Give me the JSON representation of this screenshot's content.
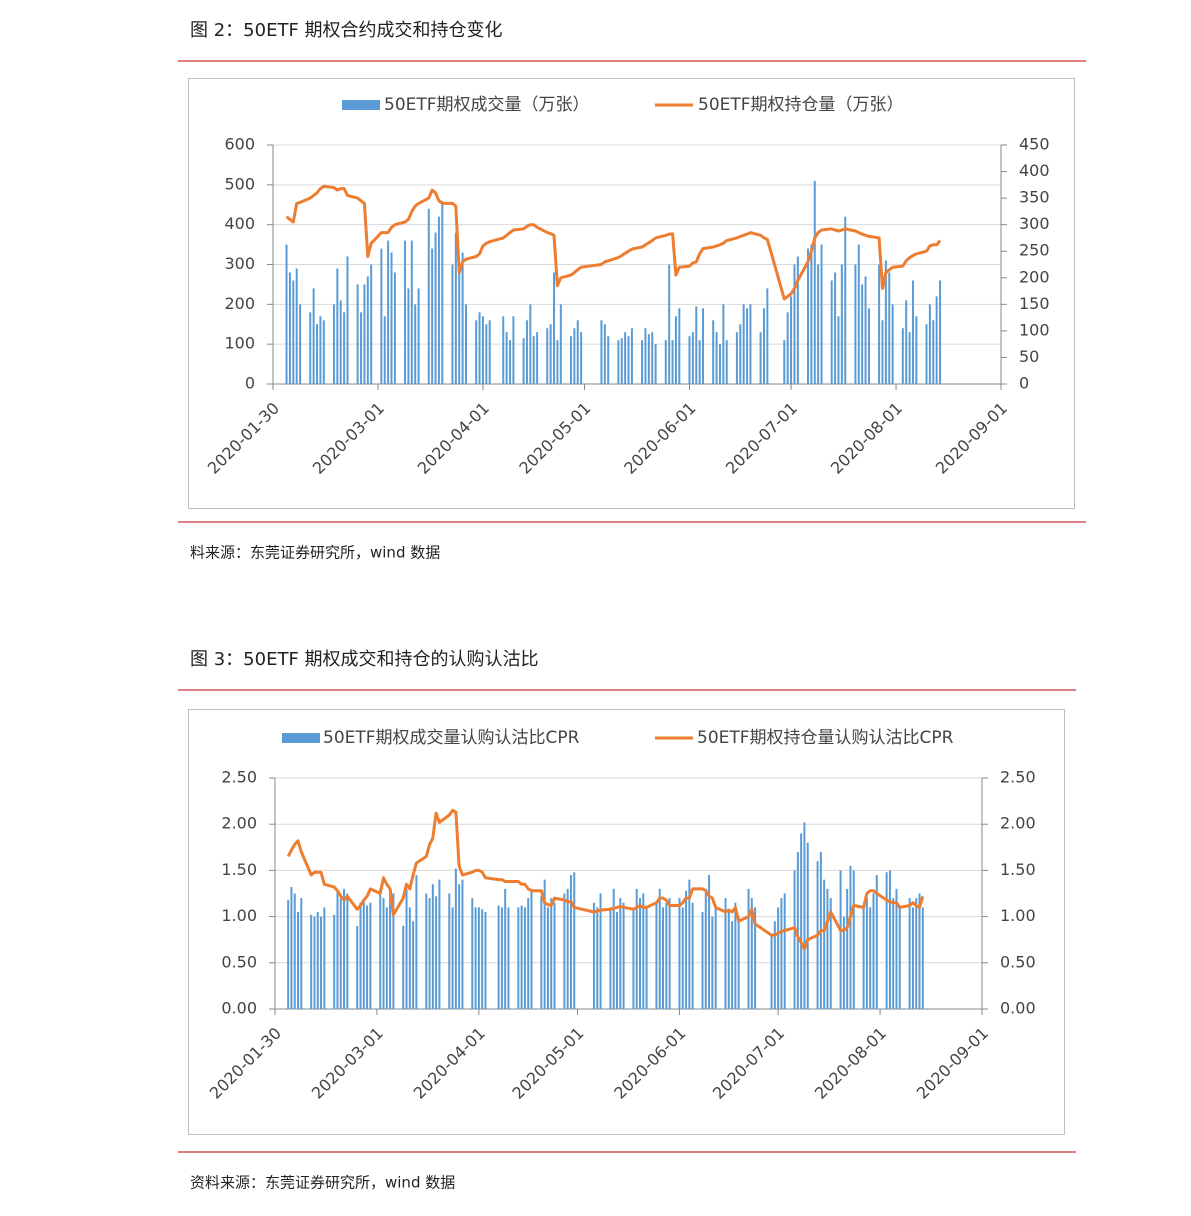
{
  "chart_data": [
    {
      "type": "combo",
      "title": "图 2：50ETF 期权合约成交和持仓变化",
      "note": "料来源：东莞证券研究所，wind 数据",
      "x": [
        "2020-02-03",
        "2020-02-04",
        "2020-02-05",
        "2020-02-06",
        "2020-02-07",
        "2020-02-10",
        "2020-02-11",
        "2020-02-12",
        "2020-02-13",
        "2020-02-14",
        "2020-02-17",
        "2020-02-18",
        "2020-02-19",
        "2020-02-20",
        "2020-02-21",
        "2020-02-24",
        "2020-02-25",
        "2020-02-26",
        "2020-02-27",
        "2020-02-28",
        "2020-03-02",
        "2020-03-03",
        "2020-03-04",
        "2020-03-05",
        "2020-03-06",
        "2020-03-09",
        "2020-03-10",
        "2020-03-11",
        "2020-03-12",
        "2020-03-13",
        "2020-03-16",
        "2020-03-17",
        "2020-03-18",
        "2020-03-19",
        "2020-03-20",
        "2020-03-23",
        "2020-03-24",
        "2020-03-25",
        "2020-03-26",
        "2020-03-27",
        "2020-03-30",
        "2020-03-31",
        "2020-04-01",
        "2020-04-02",
        "2020-04-03",
        "2020-04-07",
        "2020-04-08",
        "2020-04-09",
        "2020-04-10",
        "2020-04-13",
        "2020-04-14",
        "2020-04-15",
        "2020-04-16",
        "2020-04-17",
        "2020-04-20",
        "2020-04-21",
        "2020-04-22",
        "2020-04-23",
        "2020-04-24",
        "2020-04-27",
        "2020-04-28",
        "2020-04-29",
        "2020-04-30",
        "2020-05-06",
        "2020-05-07",
        "2020-05-08",
        "2020-05-11",
        "2020-05-12",
        "2020-05-13",
        "2020-05-14",
        "2020-05-15",
        "2020-05-18",
        "2020-05-19",
        "2020-05-20",
        "2020-05-21",
        "2020-05-22",
        "2020-05-25",
        "2020-05-26",
        "2020-05-27",
        "2020-05-28",
        "2020-05-29",
        "2020-06-01",
        "2020-06-02",
        "2020-06-03",
        "2020-06-04",
        "2020-06-05",
        "2020-06-08",
        "2020-06-09",
        "2020-06-10",
        "2020-06-11",
        "2020-06-12",
        "2020-06-15",
        "2020-06-16",
        "2020-06-17",
        "2020-06-18",
        "2020-06-19",
        "2020-06-22",
        "2020-06-23",
        "2020-06-24",
        "2020-06-29",
        "2020-06-30",
        "2020-07-01",
        "2020-07-02",
        "2020-07-03",
        "2020-07-06",
        "2020-07-07",
        "2020-07-08",
        "2020-07-09",
        "2020-07-10",
        "2020-07-13",
        "2020-07-14",
        "2020-07-15",
        "2020-07-16",
        "2020-07-17",
        "2020-07-20",
        "2020-07-21",
        "2020-07-22",
        "2020-07-23",
        "2020-07-24",
        "2020-07-27",
        "2020-07-28",
        "2020-07-29",
        "2020-07-30",
        "2020-07-31",
        "2020-08-03",
        "2020-08-04",
        "2020-08-05",
        "2020-08-06",
        "2020-08-07",
        "2020-08-10",
        "2020-08-11",
        "2020-08-12",
        "2020-08-13",
        "2020-08-14"
      ],
      "xlim": [
        "2020-01-30",
        "2020-09-01"
      ],
      "xticks": [
        "2020-01-30",
        "2020-03-01",
        "2020-04-01",
        "2020-05-01",
        "2020-06-01",
        "2020-07-01",
        "2020-08-01",
        "2020-09-01"
      ],
      "ylim": [
        0,
        600
      ],
      "yticks": [
        0,
        100,
        200,
        300,
        400,
        500,
        600
      ],
      "y2lim": [
        0,
        450
      ],
      "y2ticks": [
        0,
        50,
        100,
        150,
        200,
        250,
        300,
        350,
        400,
        450
      ],
      "grid": true,
      "series": [
        {
          "name": "50ETF期权成交量（万张）",
          "type": "bar",
          "color": "#5b9bd5",
          "values": [
            350,
            280,
            260,
            290,
            200,
            180,
            240,
            150,
            170,
            160,
            200,
            290,
            210,
            180,
            320,
            250,
            180,
            250,
            270,
            300,
            340,
            170,
            360,
            330,
            280,
            360,
            240,
            360,
            200,
            240,
            440,
            340,
            380,
            420,
            460,
            300,
            380,
            300,
            330,
            200,
            160,
            180,
            170,
            150,
            160,
            170,
            130,
            110,
            170,
            115,
            160,
            200,
            120,
            130,
            140,
            150,
            280,
            110,
            200,
            120,
            140,
            160,
            130,
            160,
            150,
            120,
            110,
            115,
            130,
            120,
            140,
            110,
            140,
            125,
            130,
            100,
            110,
            300,
            110,
            170,
            190,
            120,
            130,
            195,
            110,
            190,
            160,
            130,
            100,
            200,
            110,
            130,
            150,
            200,
            190,
            200,
            130,
            190,
            240,
            110,
            180,
            220,
            300,
            320,
            340,
            350,
            510,
            300,
            350,
            260,
            280,
            170,
            300,
            420,
            300,
            350,
            250,
            270,
            190,
            300,
            160,
            310,
            280,
            200,
            140,
            210,
            130,
            260,
            170,
            150,
            200,
            160,
            220,
            260
          ]
        },
        {
          "name": "50ETF期权持仓量（万张）",
          "type": "line",
          "axis": "y2",
          "color": "#ed7d31",
          "values": [
            315,
            310,
            305,
            340,
            342,
            350,
            355,
            360,
            368,
            372,
            370,
            365,
            368,
            368,
            355,
            350,
            345,
            340,
            240,
            265,
            285,
            285,
            285,
            295,
            300,
            305,
            310,
            325,
            335,
            340,
            350,
            365,
            360,
            345,
            340,
            340,
            335,
            210,
            230,
            235,
            240,
            245,
            260,
            265,
            268,
            275,
            280,
            285,
            290,
            292,
            297,
            300,
            300,
            295,
            285,
            283,
            280,
            185,
            200,
            205,
            210,
            215,
            220,
            225,
            230,
            232,
            238,
            242,
            246,
            250,
            254,
            258,
            262,
            266,
            270,
            275,
            280,
            282,
            283,
            205,
            220,
            222,
            228,
            230,
            245,
            255,
            258,
            260,
            262,
            265,
            270,
            275,
            278,
            280,
            282,
            285,
            280,
            275,
            272,
            160,
            165,
            170,
            180,
            195,
            230,
            250,
            275,
            285,
            290,
            292,
            290,
            288,
            290,
            292,
            288,
            285,
            282,
            280,
            278,
            275,
            180,
            210,
            215,
            220,
            222,
            232,
            238,
            242,
            245,
            250,
            260,
            262,
            262,
            270
          ]
        }
      ]
    },
    {
      "type": "combo",
      "title": "图 3：50ETF 期权成交和持仓的认购认沽比",
      "note": "资料来源：东莞证券研究所，wind 数据",
      "x": [
        "2020-02-03",
        "2020-02-04",
        "2020-02-05",
        "2020-02-06",
        "2020-02-07",
        "2020-02-10",
        "2020-02-11",
        "2020-02-12",
        "2020-02-13",
        "2020-02-14",
        "2020-02-17",
        "2020-02-18",
        "2020-02-19",
        "2020-02-20",
        "2020-02-21",
        "2020-02-24",
        "2020-02-25",
        "2020-02-26",
        "2020-02-27",
        "2020-02-28",
        "2020-03-02",
        "2020-03-03",
        "2020-03-04",
        "2020-03-05",
        "2020-03-06",
        "2020-03-09",
        "2020-03-10",
        "2020-03-11",
        "2020-03-12",
        "2020-03-13",
        "2020-03-16",
        "2020-03-17",
        "2020-03-18",
        "2020-03-19",
        "2020-03-20",
        "2020-03-23",
        "2020-03-24",
        "2020-03-25",
        "2020-03-26",
        "2020-03-27",
        "2020-03-30",
        "2020-03-31",
        "2020-04-01",
        "2020-04-02",
        "2020-04-03",
        "2020-04-07",
        "2020-04-08",
        "2020-04-09",
        "2020-04-10",
        "2020-04-13",
        "2020-04-14",
        "2020-04-15",
        "2020-04-16",
        "2020-04-17",
        "2020-04-20",
        "2020-04-21",
        "2020-04-22",
        "2020-04-23",
        "2020-04-24",
        "2020-04-27",
        "2020-04-28",
        "2020-04-29",
        "2020-04-30",
        "2020-05-06",
        "2020-05-07",
        "2020-05-08",
        "2020-05-11",
        "2020-05-12",
        "2020-05-13",
        "2020-05-14",
        "2020-05-15",
        "2020-05-18",
        "2020-05-19",
        "2020-05-20",
        "2020-05-21",
        "2020-05-22",
        "2020-05-25",
        "2020-05-26",
        "2020-05-27",
        "2020-05-28",
        "2020-05-29",
        "2020-06-01",
        "2020-06-02",
        "2020-06-03",
        "2020-06-04",
        "2020-06-05",
        "2020-06-08",
        "2020-06-09",
        "2020-06-10",
        "2020-06-11",
        "2020-06-12",
        "2020-06-15",
        "2020-06-16",
        "2020-06-17",
        "2020-06-18",
        "2020-06-19",
        "2020-06-22",
        "2020-06-23",
        "2020-06-24",
        "2020-06-29",
        "2020-06-30",
        "2020-07-01",
        "2020-07-02",
        "2020-07-03",
        "2020-07-06",
        "2020-07-07",
        "2020-07-08",
        "2020-07-09",
        "2020-07-10",
        "2020-07-13",
        "2020-07-14",
        "2020-07-15",
        "2020-07-16",
        "2020-07-17",
        "2020-07-20",
        "2020-07-21",
        "2020-07-22",
        "2020-07-23",
        "2020-07-24",
        "2020-07-27",
        "2020-07-28",
        "2020-07-29",
        "2020-07-30",
        "2020-07-31",
        "2020-08-03",
        "2020-08-04",
        "2020-08-05",
        "2020-08-06",
        "2020-08-07",
        "2020-08-10",
        "2020-08-11",
        "2020-08-12",
        "2020-08-13",
        "2020-08-14"
      ],
      "xlim": [
        "2020-01-30",
        "2020-09-01"
      ],
      "xticks": [
        "2020-01-30",
        "2020-03-01",
        "2020-04-01",
        "2020-05-01",
        "2020-06-01",
        "2020-07-01",
        "2020-08-01",
        "2020-09-01"
      ],
      "ylim": [
        0,
        2.5
      ],
      "yticks": [
        {
          "value": 0,
          "label": "0.00"
        },
        {
          "value": 0.5,
          "label": "0.50"
        },
        {
          "value": 1,
          "label": "1.00"
        },
        {
          "value": 1.5,
          "label": "1.50"
        },
        {
          "value": 2,
          "label": "2.00"
        },
        {
          "value": 2.5,
          "label": "2.50"
        }
      ],
      "y2lim": [
        0,
        2.5
      ],
      "y2ticks": [
        {
          "value": 0,
          "label": "0.00"
        },
        {
          "value": 0.5,
          "label": "0.50"
        },
        {
          "value": 1,
          "label": "1.00"
        },
        {
          "value": 1.5,
          "label": "1.50"
        },
        {
          "value": 2,
          "label": "2.00"
        },
        {
          "value": 2.5,
          "label": "2.50"
        }
      ],
      "grid": true,
      "series": [
        {
          "name": "50ETF期权成交量认购认沽比CPR",
          "type": "bar",
          "color": "#5b9bd5",
          "values": [
            1.18,
            1.32,
            1.25,
            1.05,
            1.2,
            1.02,
            1.0,
            1.05,
            1.0,
            1.1,
            1.02,
            1.28,
            1.2,
            1.3,
            1.25,
            0.9,
            1.15,
            1.18,
            1.12,
            1.15,
            1.3,
            1.2,
            1.1,
            1.3,
            1.25,
            0.9,
            1.3,
            1.1,
            0.95,
            1.45,
            1.25,
            1.2,
            1.35,
            1.22,
            1.4,
            1.25,
            1.1,
            1.52,
            1.35,
            1.4,
            1.2,
            1.1,
            1.1,
            1.08,
            1.05,
            1.12,
            1.1,
            1.3,
            1.1,
            1.1,
            1.12,
            1.1,
            1.2,
            1.3,
            1.22,
            1.4,
            1.1,
            1.2,
            1.15,
            1.25,
            1.3,
            1.45,
            1.48,
            1.15,
            1.1,
            1.25,
            1.1,
            1.3,
            1.05,
            1.2,
            1.15,
            1.1,
            1.3,
            1.2,
            1.25,
            1.1,
            1.15,
            1.3,
            1.1,
            1.15,
            1.2,
            1.2,
            1.1,
            1.28,
            1.4,
            1.15,
            1.05,
            1.3,
            1.45,
            1.0,
            1.1,
            1.2,
            1.05,
            0.95,
            1.15,
            1.0,
            1.3,
            1.2,
            1.1,
            0.8,
            0.95,
            1.1,
            1.2,
            1.25,
            1.5,
            1.7,
            1.9,
            2.02,
            1.8,
            1.6,
            1.7,
            1.4,
            1.3,
            1.2,
            1.5,
            1.0,
            1.3,
            1.55,
            1.5,
            1.1,
            1.2,
            1.1,
            1.25,
            1.45,
            1.48,
            1.5,
            1.2,
            1.3,
            1.1,
            1.2,
            1.1,
            1.2,
            1.25,
            1.1
          ]
        },
        {
          "name": "50ETF期权持仓量认购认沽比CPR",
          "type": "line",
          "axis": "y2",
          "color": "#ed7d31",
          "values": [
            1.65,
            1.72,
            1.78,
            1.82,
            1.7,
            1.45,
            1.48,
            1.48,
            1.48,
            1.35,
            1.32,
            1.28,
            1.22,
            1.18,
            1.22,
            1.08,
            1.12,
            1.18,
            1.22,
            1.3,
            1.25,
            1.42,
            1.35,
            1.3,
            1.02,
            1.2,
            1.35,
            1.3,
            1.45,
            1.58,
            1.65,
            1.78,
            1.85,
            2.12,
            2.02,
            2.1,
            2.15,
            2.13,
            1.55,
            1.45,
            1.48,
            1.5,
            1.5,
            1.48,
            1.42,
            1.4,
            1.4,
            1.38,
            1.38,
            1.38,
            1.35,
            1.35,
            1.3,
            1.28,
            1.28,
            1.15,
            1.13,
            1.12,
            1.2,
            1.18,
            1.16,
            1.16,
            1.1,
            1.05,
            1.06,
            1.07,
            1.08,
            1.09,
            1.1,
            1.11,
            1.1,
            1.08,
            1.1,
            1.12,
            1.1,
            1.1,
            1.15,
            1.2,
            1.2,
            1.18,
            1.12,
            1.12,
            1.15,
            1.2,
            1.2,
            1.3,
            1.3,
            1.28,
            1.22,
            1.2,
            1.1,
            1.05,
            1.07,
            1.05,
            1.1,
            0.95,
            1.0,
            1.08,
            0.92,
            0.8,
            0.8,
            0.82,
            0.84,
            0.85,
            0.88,
            0.78,
            0.72,
            0.65,
            0.75,
            0.8,
            0.85,
            0.85,
            0.95,
            1.05,
            0.85,
            0.85,
            0.88,
            1.0,
            1.12,
            1.1,
            1.25,
            1.28,
            1.28,
            1.25,
            1.18,
            1.16,
            1.15,
            1.15,
            1.1,
            1.12,
            1.15,
            1.12,
            1.1,
            1.22
          ]
        }
      ]
    }
  ]
}
